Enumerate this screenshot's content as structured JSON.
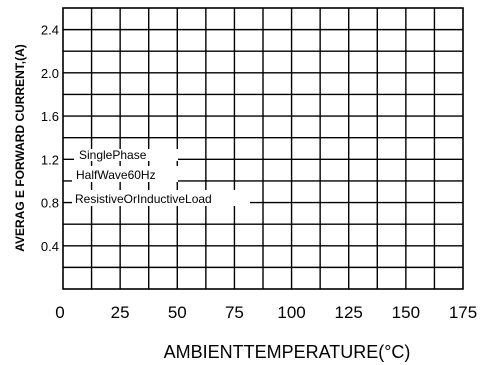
{
  "chart_data": {
    "type": "line",
    "title": "",
    "xlabel": "AMBIENTTEMPERATURE(°C)",
    "ylabel": "AVERAG E FORWARD CURRENT,(A)",
    "xlim": [
      0,
      175
    ],
    "ylim": [
      0,
      2.6
    ],
    "x_tick_labels": [
      "0",
      "25",
      "50",
      "75",
      "100",
      "125",
      "150",
      "175"
    ],
    "x_tick_values": [
      0,
      25,
      50,
      75,
      100,
      125,
      150,
      175
    ],
    "y_tick_labels": [
      "0.4",
      "0.8",
      "1.2",
      "1.6",
      "2.0",
      "2.4"
    ],
    "y_tick_values": [
      0.4,
      0.8,
      1.2,
      1.6,
      2.0,
      2.4
    ],
    "grid": true,
    "annotations": [
      "SinglePhase",
      "HalfWave60Hz",
      "ResistiveOrInductiveLoad"
    ],
    "series": []
  }
}
